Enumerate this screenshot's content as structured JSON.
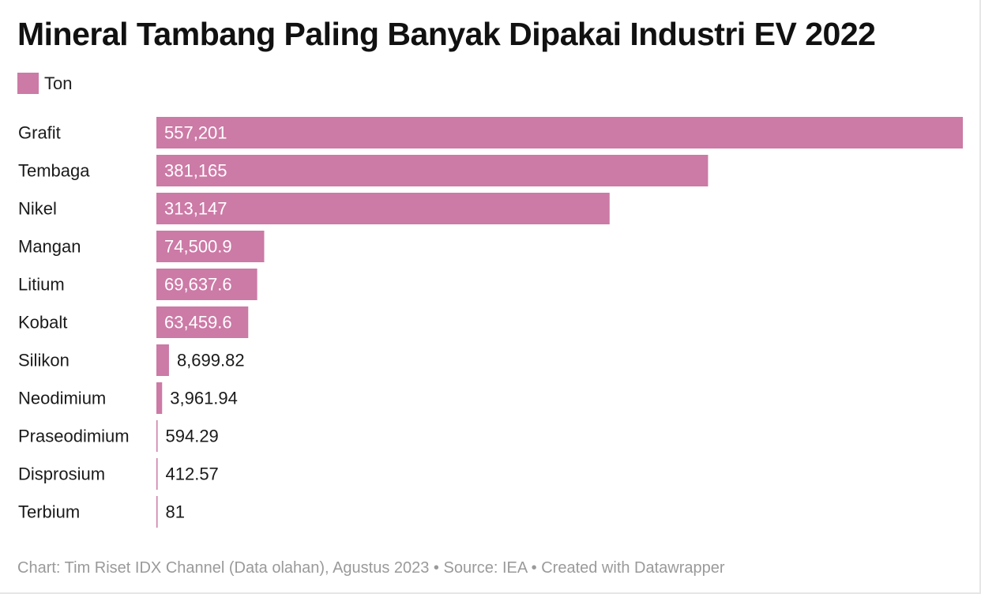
{
  "chart_data": {
    "type": "bar",
    "orientation": "horizontal",
    "title": "Mineral Tambang Paling Banyak Dipakai Industri EV 2022",
    "legend": {
      "position": "top-left",
      "entries": [
        "Ton"
      ]
    },
    "categories": [
      "Grafit",
      "Tembaga",
      "Nikel",
      "Mangan",
      "Litium",
      "Kobalt",
      "Silikon",
      "Neodimium",
      "Praseodimium",
      "Disprosium",
      "Terbium"
    ],
    "series": [
      {
        "name": "Ton",
        "values": [
          557201,
          381165,
          313147,
          74500.9,
          69637.6,
          63459.6,
          8699.82,
          3961.94,
          594.29,
          412.57,
          81
        ],
        "labels": [
          "557,201",
          "381,165",
          "313,147",
          "74,500.9",
          "69,637.6",
          "63,459.6",
          "8,699.82",
          "3,961.94",
          "594.29",
          "412.57",
          "81"
        ]
      }
    ],
    "xlim": [
      0,
      557201
    ],
    "grid": false
  },
  "colors": {
    "bar": "#cc7aa6",
    "label_inside": "#ffffff",
    "label_outside": "#1a1a1a",
    "category_label": "#1a1a1a",
    "footer": "#9a9a9a"
  },
  "footer": "Chart: Tim Riset IDX Channel (Data olahan), Agustus 2023 • Source: IEA • Created with Datawrapper"
}
